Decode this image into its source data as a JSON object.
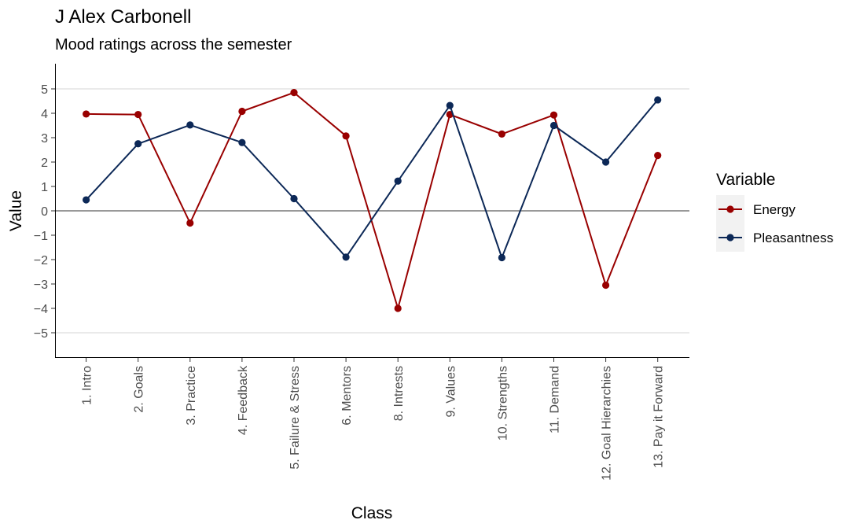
{
  "chart_data": {
    "type": "line",
    "title": "J Alex Carbonell",
    "subtitle": "Mood ratings across the semester",
    "xlabel": "Class",
    "ylabel": "Value",
    "categories": [
      "1. Intro",
      "2. Goals",
      "3. Practice",
      "4. Feedback",
      "5. Failure & Stress",
      "6. Mentors",
      "8. Intrests",
      "9. Values",
      "10. Strengths",
      "11. Demand",
      "12. Goal Hierarchies",
      "13. Pay it Forward"
    ],
    "ylim": [
      -6,
      6
    ],
    "yticks": [
      -5,
      -4,
      -3,
      -2,
      -1,
      0,
      1,
      2,
      3,
      4,
      5
    ],
    "ytick_labels": [
      "−5",
      "−4",
      "−3",
      "−2",
      "−1",
      "0",
      "1",
      "2",
      "3",
      "4",
      "5"
    ],
    "gridlines_at": [
      -5,
      5
    ],
    "zero_line": true,
    "legend_title": "Variable",
    "legend_position": "right",
    "series": [
      {
        "name": "Energy",
        "color": "#990000",
        "values": [
          3.97,
          3.95,
          -0.5,
          4.08,
          4.85,
          3.07,
          -4.0,
          3.95,
          3.15,
          3.93,
          -3.05,
          2.27
        ]
      },
      {
        "name": "Pleasantness",
        "color": "#0c2857",
        "values": [
          0.45,
          2.75,
          3.52,
          2.8,
          0.5,
          -1.9,
          1.22,
          4.32,
          -1.92,
          3.5,
          2.0,
          4.55
        ]
      }
    ]
  }
}
